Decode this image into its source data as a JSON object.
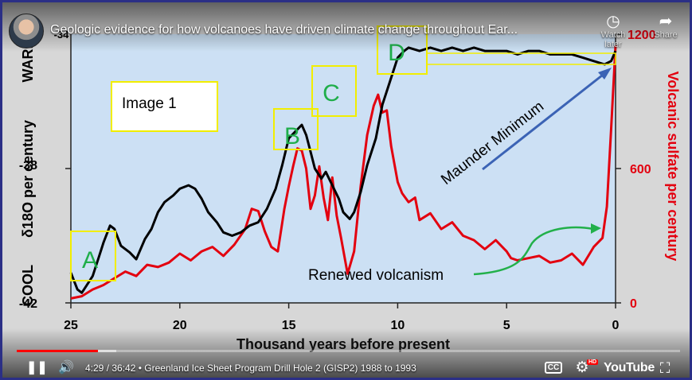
{
  "video": {
    "title": "Geologic evidence for how volcanoes have driven climate change throughout Ear...",
    "watch_later_label": "Watch later",
    "share_label": "Share",
    "time": "4:29 / 36:42",
    "chapter": "• Greenland Ice Sheet Program Drill Hole 2 (GISP2) 1988 to 1993",
    "progress_fraction": 0.122,
    "buffer_fraction": 0.15,
    "youtube_label": "YouTube",
    "hd_badge": "HD",
    "icons": [
      "clock-icon",
      "share-icon",
      "pause-icon",
      "volume-icon",
      "cc-icon",
      "settings-icon",
      "fullscreen-icon"
    ]
  },
  "slide": {
    "image_label": "Image 1",
    "boxes": [
      "A",
      "B",
      "C",
      "D"
    ],
    "maunder_label": "Maunder Minimum",
    "renewed_label": "Renewed volcanism",
    "left_warm": "WARM",
    "left_cool": "COOL",
    "left_axis_label": "δ18O per century",
    "right_axis_label": "Volcanic sulfate per century",
    "colors": {
      "isotope": "#000000",
      "sulfate": "#e3000f",
      "box_border": "#f2ee00",
      "letters": "#1fae4a",
      "arrow_blue": "#3b63b5",
      "arrow_green": "#22b04a",
      "plot_bg": "#cce0f4"
    }
  },
  "chart_data": {
    "type": "line",
    "xlabel": "Thousand years before present",
    "x_ticks": [
      25,
      20,
      15,
      10,
      5,
      0
    ],
    "xlim": [
      25,
      0
    ],
    "y_left_ticks": [
      "-38",
      "-42"
    ],
    "y_left_top_label": "-34",
    "ylim_left": [
      -42,
      -34
    ],
    "y_right_ticks": [
      "1200",
      "600",
      "0"
    ],
    "ylim_right": [
      0,
      1200
    ],
    "series": [
      {
        "name": "δ18O",
        "axis": "left",
        "x": [
          25.0,
          24.7,
          24.5,
          24.3,
          24.0,
          23.7,
          23.5,
          23.2,
          23.0,
          22.7,
          22.3,
          22.0,
          21.6,
          21.3,
          21.0,
          20.7,
          20.3,
          20.0,
          19.6,
          19.3,
          19.0,
          18.7,
          18.3,
          18.0,
          17.6,
          17.2,
          16.8,
          16.4,
          16.0,
          15.6,
          15.3,
          15.0,
          14.7,
          14.4,
          14.2,
          14.0,
          13.8,
          13.5,
          13.3,
          13.0,
          12.7,
          12.5,
          12.2,
          12.0,
          11.7,
          11.4,
          11.0,
          10.7,
          10.3,
          10.0,
          9.7,
          9.5,
          9.0,
          8.5,
          8.0,
          7.5,
          7.0,
          6.5,
          6.0,
          5.5,
          5.0,
          4.5,
          4.0,
          3.5,
          3.0,
          2.5,
          2.0,
          1.5,
          1.0,
          0.5,
          0.2,
          0.0
        ],
        "y": [
          -41.1,
          -41.6,
          -41.7,
          -41.5,
          -41.2,
          -40.6,
          -40.2,
          -39.7,
          -39.8,
          -40.3,
          -40.5,
          -40.7,
          -40.1,
          -39.8,
          -39.3,
          -39.0,
          -38.8,
          -38.6,
          -38.5,
          -38.6,
          -38.9,
          -39.3,
          -39.6,
          -39.9,
          -40.0,
          -39.9,
          -39.7,
          -39.6,
          -39.2,
          -38.6,
          -37.9,
          -37.1,
          -36.9,
          -36.7,
          -37.0,
          -37.5,
          -38.0,
          -38.3,
          -38.1,
          -38.5,
          -38.9,
          -39.3,
          -39.5,
          -39.3,
          -38.7,
          -37.9,
          -37.1,
          -36.1,
          -35.3,
          -34.7,
          -34.5,
          -34.4,
          -34.5,
          -34.4,
          -34.5,
          -34.4,
          -34.5,
          -34.4,
          -34.5,
          -34.5,
          -34.5,
          -34.6,
          -34.5,
          -34.5,
          -34.6,
          -34.6,
          -34.6,
          -34.7,
          -34.8,
          -34.9,
          -34.8,
          -34.5
        ]
      },
      {
        "name": "Volcanic sulfate",
        "axis": "right",
        "x": [
          25.0,
          24.5,
          24.0,
          23.5,
          23.0,
          22.5,
          22.0,
          21.5,
          21.0,
          20.5,
          20.0,
          19.5,
          19.0,
          18.5,
          18.0,
          17.5,
          17.0,
          16.7,
          16.4,
          16.1,
          15.8,
          15.5,
          15.2,
          15.0,
          14.8,
          14.6,
          14.4,
          14.2,
          14.0,
          13.8,
          13.6,
          13.4,
          13.2,
          13.0,
          12.8,
          12.6,
          12.3,
          12.0,
          11.7,
          11.4,
          11.1,
          10.9,
          10.7,
          10.5,
          10.3,
          10.0,
          9.8,
          9.5,
          9.2,
          9.0,
          8.5,
          8.0,
          7.5,
          7.0,
          6.5,
          6.0,
          5.5,
          5.0,
          4.8,
          4.5,
          4.0,
          3.5,
          3.0,
          2.5,
          2.0,
          1.5,
          1.0,
          0.6,
          0.4,
          0.2,
          0.0
        ],
        "y": [
          20,
          30,
          60,
          80,
          110,
          140,
          120,
          170,
          160,
          180,
          220,
          190,
          230,
          250,
          210,
          260,
          330,
          420,
          410,
          320,
          250,
          230,
          420,
          520,
          610,
          690,
          680,
          600,
          420,
          480,
          610,
          470,
          370,
          560,
          390,
          290,
          130,
          230,
          520,
          750,
          880,
          930,
          850,
          860,
          700,
          540,
          490,
          450,
          470,
          370,
          400,
          330,
          360,
          300,
          280,
          240,
          280,
          230,
          200,
          190,
          200,
          210,
          180,
          190,
          220,
          170,
          250,
          290,
          430,
          780,
          1150
        ]
      }
    ]
  }
}
